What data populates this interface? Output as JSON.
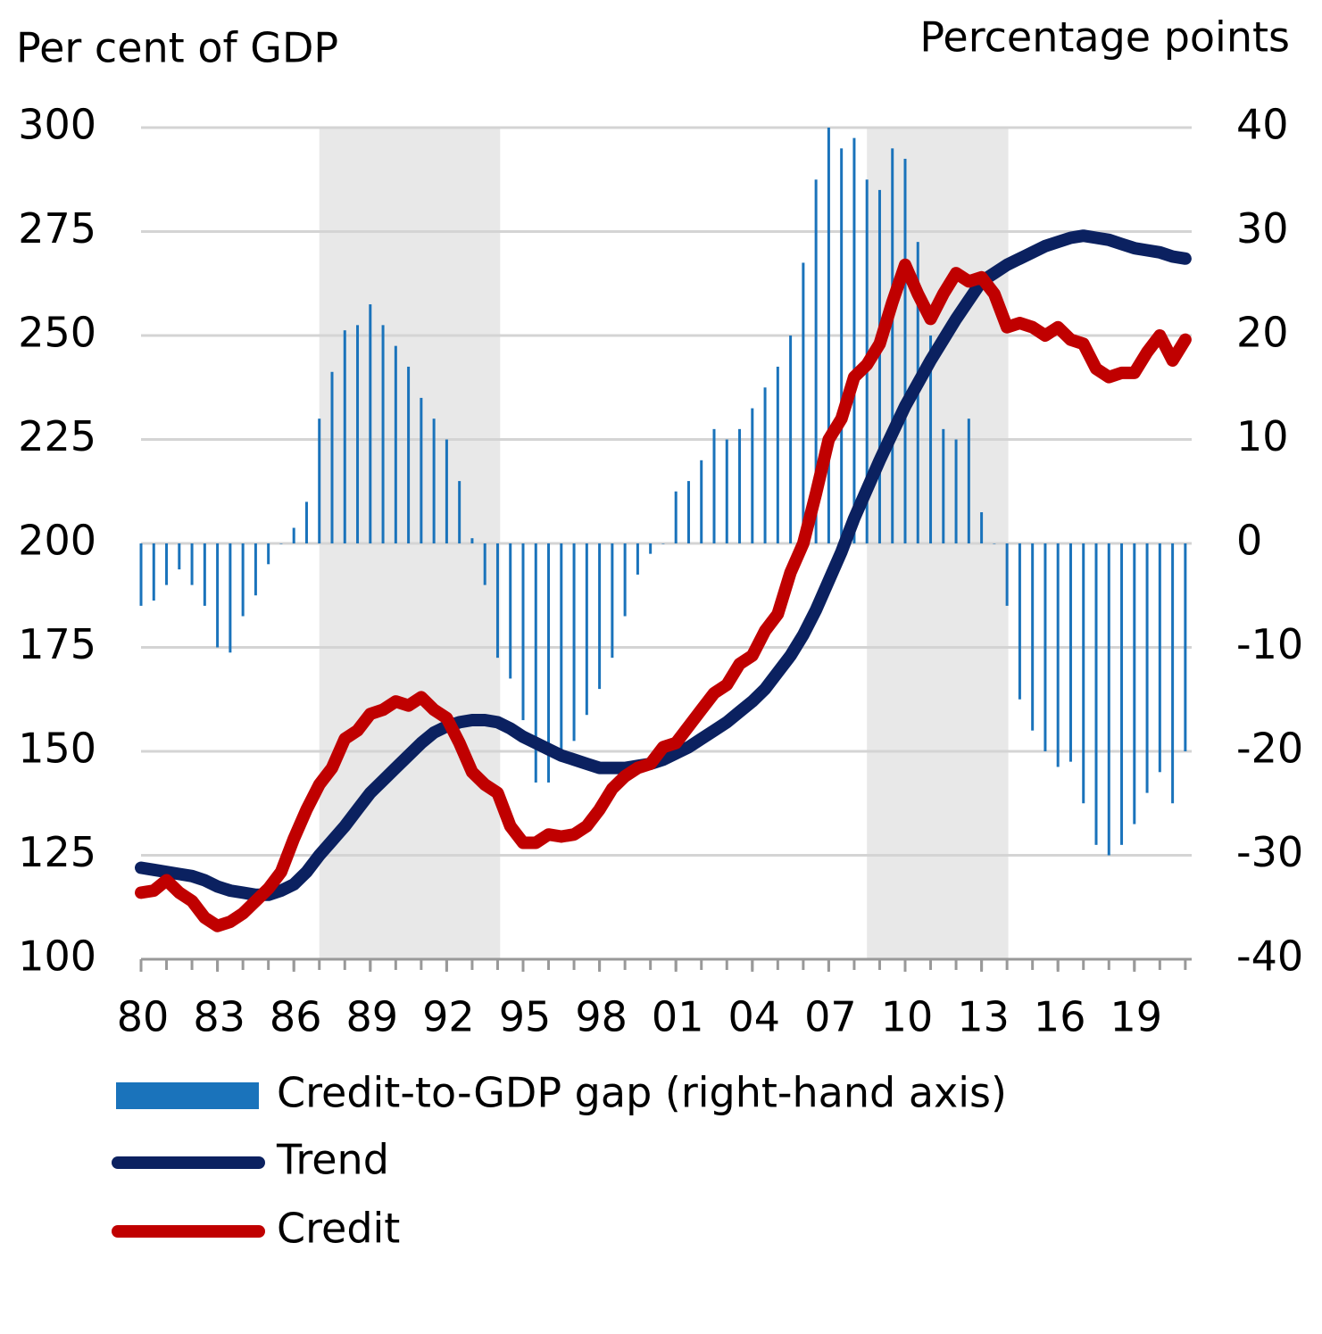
{
  "chart_data": {
    "type": "bar-line",
    "y_label": "Per cent of GDP",
    "y2_label": "Percentage points",
    "x": [
      1980,
      1980.5,
      1981,
      1981.5,
      1982,
      1982.5,
      1983,
      1983.5,
      1984,
      1984.5,
      1985,
      1985.5,
      1986,
      1986.5,
      1987,
      1987.5,
      1988,
      1988.5,
      1989,
      1989.5,
      1990,
      1990.5,
      1991,
      1991.5,
      1992,
      1992.5,
      1993,
      1993.5,
      1994,
      1994.5,
      1995,
      1995.5,
      1996,
      1996.5,
      1997,
      1997.5,
      1998,
      1998.5,
      1999,
      1999.5,
      2000,
      2000.5,
      2001,
      2001.5,
      2002,
      2002.5,
      2003,
      2003.5,
      2004,
      2004.5,
      2005,
      2005.5,
      2006,
      2006.5,
      2007,
      2007.5,
      2008,
      2008.5,
      2009,
      2009.5,
      2010,
      2010.5,
      2011,
      2011.5,
      2012,
      2012.5,
      2013,
      2013.5,
      2014,
      2014.5,
      2015,
      2015.5,
      2016,
      2016.5,
      2017,
      2017.5,
      2018,
      2018.5,
      2019,
      2019.5,
      2020,
      2020.5,
      2021
    ],
    "xlim": [
      1980,
      2021.25
    ],
    "xticks": [
      {
        "value": 1980,
        "label": "80"
      },
      {
        "value": 1983,
        "label": "83"
      },
      {
        "value": 1986,
        "label": "86"
      },
      {
        "value": 1989,
        "label": "89"
      },
      {
        "value": 1992,
        "label": "92"
      },
      {
        "value": 1995,
        "label": "95"
      },
      {
        "value": 1998,
        "label": "98"
      },
      {
        "value": 2001,
        "label": "01"
      },
      {
        "value": 2004,
        "label": "04"
      },
      {
        "value": 2007,
        "label": "07"
      },
      {
        "value": 2010,
        "label": "10"
      },
      {
        "value": 2013,
        "label": "13"
      },
      {
        "value": 2016,
        "label": "16"
      },
      {
        "value": 2019,
        "label": "19"
      }
    ],
    "ylim": [
      100,
      300
    ],
    "yticks": [
      100,
      125,
      150,
      175,
      200,
      225,
      250,
      275,
      300
    ],
    "y2lim": [
      -40,
      40
    ],
    "y2ticks": [
      -40,
      -30,
      -20,
      -10,
      0,
      10,
      20,
      30,
      40
    ],
    "grid": true,
    "shaded_periods": [
      [
        1987,
        1994.1
      ],
      [
        2008.5,
        2014.05
      ]
    ],
    "shade_color": "#e8e8e8",
    "series": [
      {
        "name": "Credit-to-GDP gap (right-hand axis)",
        "type": "bar",
        "axis": "y2",
        "color": "#1a73bb",
        "values": [
          -6,
          -5.5,
          -4,
          -2.5,
          -4,
          -6,
          -10,
          -10.5,
          -7,
          -5,
          -2,
          0,
          1.5,
          4,
          12,
          16.5,
          20.5,
          21,
          23,
          21,
          19,
          17,
          14,
          12,
          10,
          6,
          0.5,
          -4,
          -11,
          -13,
          -17,
          -23,
          -23,
          -21,
          -19,
          -16.5,
          -14,
          -11,
          -7,
          -3,
          -1,
          0,
          5,
          6,
          8,
          11,
          10,
          11,
          13,
          15,
          17,
          20,
          27,
          35,
          40,
          38,
          39,
          35,
          34,
          38,
          37,
          29,
          20,
          11,
          10,
          12,
          3,
          0,
          -6,
          -15,
          -18,
          -20,
          -21.5,
          -21,
          -25,
          -29,
          -30,
          -29,
          -27,
          -24,
          -22,
          -25,
          -20
        ]
      },
      {
        "name": "Trend",
        "type": "line",
        "axis": "y",
        "color": "#0b2160",
        "values": [
          122,
          121.5,
          121,
          120.5,
          120,
          119,
          117.5,
          116.5,
          116,
          115.5,
          115.5,
          116.5,
          118,
          121,
          125,
          128.5,
          132,
          136,
          140,
          143,
          146,
          149,
          152,
          154.5,
          156,
          157,
          157.5,
          157.5,
          157,
          155.5,
          153.5,
          152,
          150.5,
          149,
          148,
          147,
          146,
          146,
          146,
          146.5,
          147,
          148,
          149.5,
          151,
          153,
          155,
          157,
          159.5,
          162,
          165,
          169,
          173,
          178,
          184,
          191,
          198,
          206,
          213,
          220,
          226.5,
          233,
          238.5,
          244,
          249,
          254,
          258.5,
          263,
          265,
          267,
          268.5,
          270,
          271.5,
          272.5,
          273.5,
          274,
          273.5,
          273,
          272,
          271,
          270.5,
          270,
          269,
          268.5
        ]
      },
      {
        "name": "Credit",
        "type": "line",
        "axis": "y",
        "color": "#c00000",
        "values": [
          116,
          116.5,
          119,
          116,
          114,
          110,
          108,
          109,
          111,
          114,
          117,
          121,
          129,
          136,
          142,
          146,
          153,
          155,
          159,
          160,
          162,
          161,
          163,
          160,
          158,
          152,
          145,
          142,
          140,
          132,
          128,
          128,
          130,
          129.5,
          130,
          132,
          136,
          141,
          144,
          146,
          147,
          151,
          152,
          156,
          160,
          164,
          166,
          171,
          173,
          179,
          183,
          193,
          200,
          212,
          225,
          230,
          240,
          243,
          248,
          258,
          267,
          260,
          254,
          260,
          265,
          263,
          264,
          260,
          252,
          253,
          252,
          250,
          252,
          249,
          248,
          242,
          240,
          241,
          241,
          246,
          250,
          244,
          249
        ]
      }
    ]
  }
}
